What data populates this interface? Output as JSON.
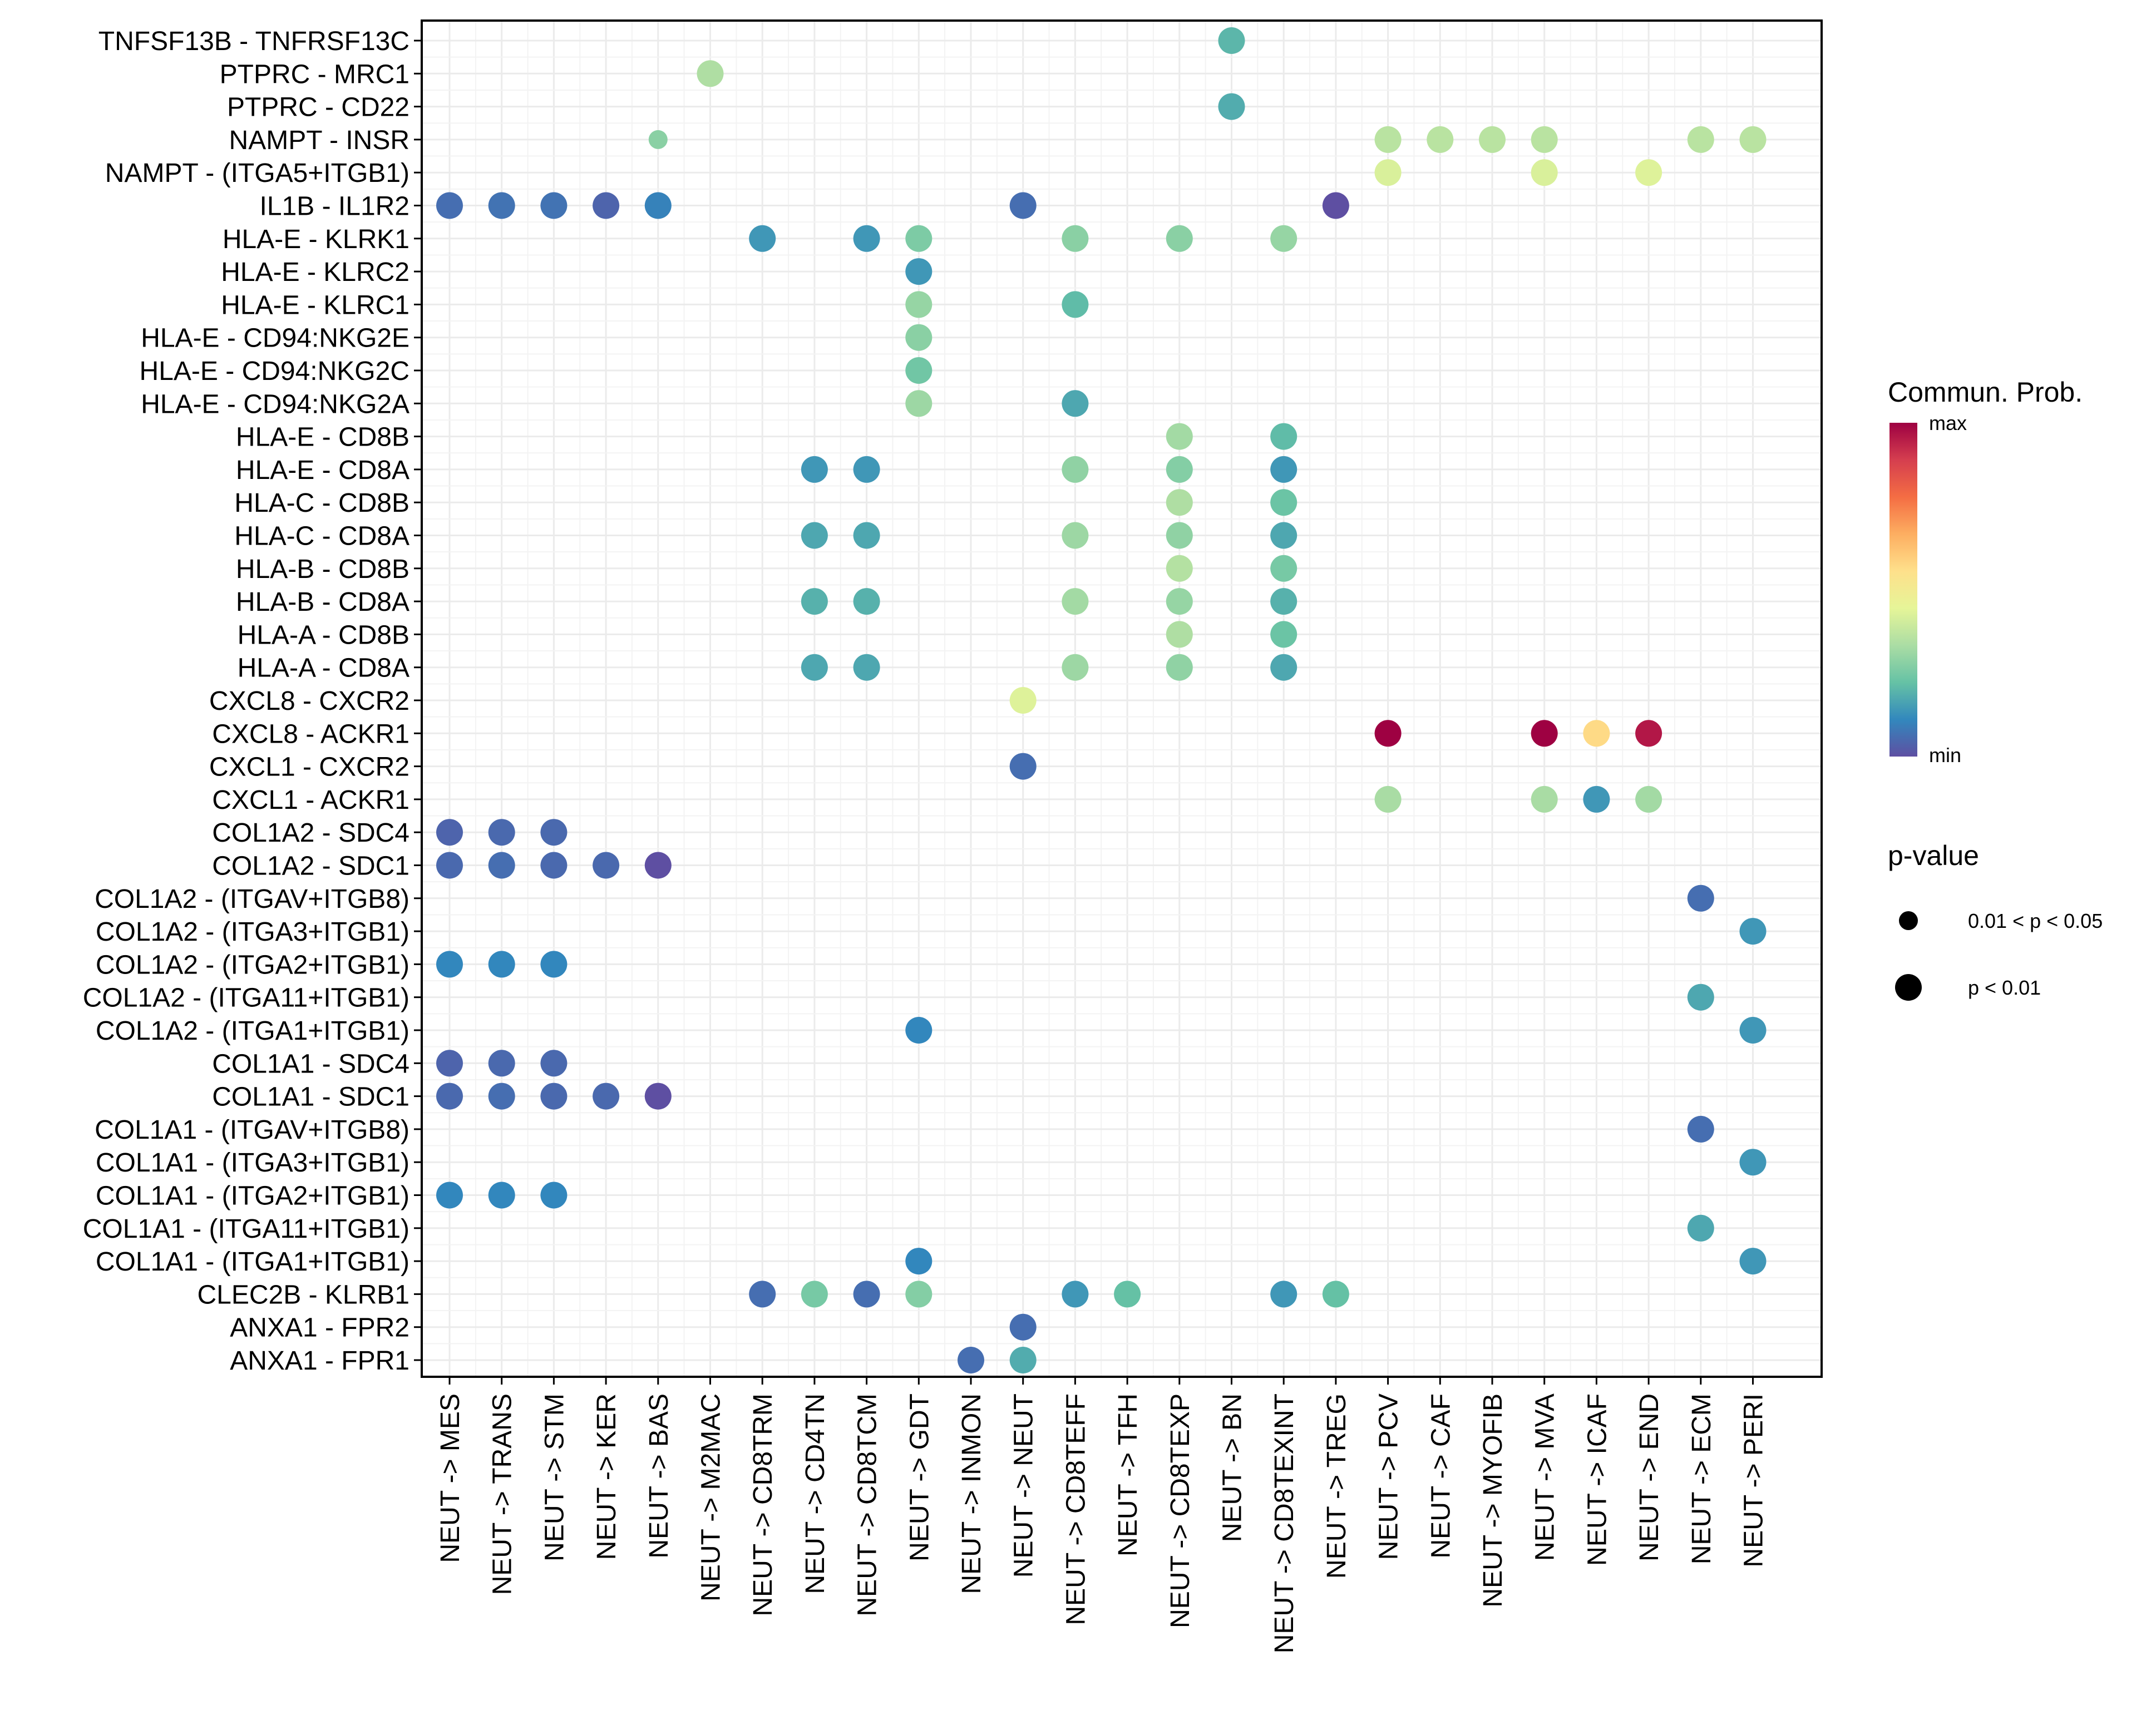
{
  "chart_data": {
    "type": "scatter",
    "subtype": "dot-plot",
    "title": "",
    "xlabel": "",
    "ylabel": "",
    "grid": true,
    "legend_position": "right",
    "x_categories": [
      "NEUT -> MES",
      "NEUT -> TRANS",
      "NEUT -> STM",
      "NEUT -> KER",
      "NEUT -> BAS",
      "NEUT -> M2MAC",
      "NEUT -> CD8TRM",
      "NEUT -> CD4TN",
      "NEUT -> CD8TCM",
      "NEUT -> GDT",
      "NEUT -> INMON",
      "NEUT -> NEUT",
      "NEUT -> CD8TEFF",
      "NEUT -> TFH",
      "NEUT -> CD8TEXP",
      "NEUT -> BN",
      "NEUT -> CD8TEXINT",
      "NEUT -> TREG",
      "NEUT -> PCV",
      "NEUT -> CAF",
      "NEUT -> MYOFIB",
      "NEUT -> MVA",
      "NEUT -> ICAF",
      "NEUT -> END",
      "NEUT -> ECM",
      "NEUT -> PERI"
    ],
    "y_categories": [
      "TNFSF13B - TNFRSF13C",
      "PTPRC - MRC1",
      "PTPRC - CD22",
      "NAMPT - INSR",
      "NAMPT - (ITGA5+ITGB1)",
      "IL1B - IL1R2",
      "HLA-E - KLRK1",
      "HLA-E - KLRC2",
      "HLA-E - KLRC1",
      "HLA-E - CD94:NKG2E",
      "HLA-E - CD94:NKG2C",
      "HLA-E - CD94:NKG2A",
      "HLA-E - CD8B",
      "HLA-E - CD8A",
      "HLA-C - CD8B",
      "HLA-C - CD8A",
      "HLA-B - CD8B",
      "HLA-B - CD8A",
      "HLA-A - CD8B",
      "HLA-A - CD8A",
      "CXCL8 - CXCR2",
      "CXCL8 - ACKR1",
      "CXCL1 - CXCR2",
      "CXCL1 - ACKR1",
      "COL1A2 - SDC4",
      "COL1A2 - SDC1",
      "COL1A2 - (ITGAV+ITGB8)",
      "COL1A2 - (ITGA3+ITGB1)",
      "COL1A2 - (ITGA2+ITGB1)",
      "COL1A2 - (ITGA11+ITGB1)",
      "COL1A2 - (ITGA1+ITGB1)",
      "COL1A1 - SDC4",
      "COL1A1 - SDC1",
      "COL1A1 - (ITGAV+ITGB8)",
      "COL1A1 - (ITGA3+ITGB1)",
      "COL1A1 - (ITGA2+ITGB1)",
      "COL1A1 - (ITGA11+ITGB1)",
      "COL1A1 - (ITGA1+ITGB1)",
      "CLEC2B - KLRB1",
      "ANXA1 - FPR2",
      "ANXA1 - FPR1"
    ],
    "color_scale": {
      "title": "Commun. Prob.",
      "min_label": "min",
      "max_label": "max",
      "palette": [
        "#5E4FA2",
        "#3288BD",
        "#66C2A5",
        "#ABDDA4",
        "#E6F598",
        "#FEE08B",
        "#FDAE61",
        "#F46D43",
        "#D53E4F",
        "#9E0142"
      ]
    },
    "size_legend": {
      "title": "p-value",
      "entries": [
        {
          "label": "0.01 < p < 0.05",
          "pclass": "mid"
        },
        {
          "label": "p < 0.01",
          "pclass": "low"
        }
      ]
    },
    "points": [
      {
        "x": "NEUT -> BN",
        "y": "TNFSF13B - TNFRSF13C",
        "prob": 0.2,
        "pclass": "low"
      },
      {
        "x": "NEUT -> M2MAC",
        "y": "PTPRC - MRC1",
        "prob": 0.34,
        "pclass": "low"
      },
      {
        "x": "NEUT -> BN",
        "y": "PTPRC - CD22",
        "prob": 0.18,
        "pclass": "low"
      },
      {
        "x": "NEUT -> BAS",
        "y": "NAMPT - INSR",
        "prob": 0.28,
        "pclass": "mid"
      },
      {
        "x": "NEUT -> PCV",
        "y": "NAMPT - INSR",
        "prob": 0.36,
        "pclass": "low"
      },
      {
        "x": "NEUT -> CAF",
        "y": "NAMPT - INSR",
        "prob": 0.36,
        "pclass": "low"
      },
      {
        "x": "NEUT -> MYOFIB",
        "y": "NAMPT - INSR",
        "prob": 0.36,
        "pclass": "low"
      },
      {
        "x": "NEUT -> MVA",
        "y": "NAMPT - INSR",
        "prob": 0.36,
        "pclass": "low"
      },
      {
        "x": "NEUT -> ECM",
        "y": "NAMPT - INSR",
        "prob": 0.36,
        "pclass": "low"
      },
      {
        "x": "NEUT -> PERI",
        "y": "NAMPT - INSR",
        "prob": 0.36,
        "pclass": "low"
      },
      {
        "x": "NEUT -> PCV",
        "y": "NAMPT - (ITGA5+ITGB1)",
        "prob": 0.42,
        "pclass": "low"
      },
      {
        "x": "NEUT -> MVA",
        "y": "NAMPT - (ITGA5+ITGB1)",
        "prob": 0.42,
        "pclass": "low"
      },
      {
        "x": "NEUT -> END",
        "y": "NAMPT - (ITGA5+ITGB1)",
        "prob": 0.43,
        "pclass": "low"
      },
      {
        "x": "NEUT -> MES",
        "y": "IL1B - IL1R2",
        "prob": 0.06,
        "pclass": "low"
      },
      {
        "x": "NEUT -> TRANS",
        "y": "IL1B - IL1R2",
        "prob": 0.07,
        "pclass": "low"
      },
      {
        "x": "NEUT -> STM",
        "y": "IL1B - IL1R2",
        "prob": 0.07,
        "pclass": "low"
      },
      {
        "x": "NEUT -> KER",
        "y": "IL1B - IL1R2",
        "prob": 0.04,
        "pclass": "low"
      },
      {
        "x": "NEUT -> BAS",
        "y": "IL1B - IL1R2",
        "prob": 0.1,
        "pclass": "low"
      },
      {
        "x": "NEUT -> NEUT",
        "y": "IL1B - IL1R2",
        "prob": 0.06,
        "pclass": "low"
      },
      {
        "x": "NEUT -> TREG",
        "y": "IL1B - IL1R2",
        "prob": 0.0,
        "pclass": "low"
      },
      {
        "x": "NEUT -> CD8TRM",
        "y": "HLA-E - KLRK1",
        "prob": 0.14,
        "pclass": "low"
      },
      {
        "x": "NEUT -> CD8TCM",
        "y": "HLA-E - KLRK1",
        "prob": 0.14,
        "pclass": "low"
      },
      {
        "x": "NEUT -> GDT",
        "y": "HLA-E - KLRK1",
        "prob": 0.26,
        "pclass": "low"
      },
      {
        "x": "NEUT -> CD8TEFF",
        "y": "HLA-E - KLRK1",
        "prob": 0.28,
        "pclass": "low"
      },
      {
        "x": "NEUT -> CD8TEXP",
        "y": "HLA-E - KLRK1",
        "prob": 0.28,
        "pclass": "low"
      },
      {
        "x": "NEUT -> CD8TEXINT",
        "y": "HLA-E - KLRK1",
        "prob": 0.3,
        "pclass": "low"
      },
      {
        "x": "NEUT -> GDT",
        "y": "HLA-E - KLRC2",
        "prob": 0.14,
        "pclass": "low"
      },
      {
        "x": "NEUT -> GDT",
        "y": "HLA-E - KLRC1",
        "prob": 0.3,
        "pclass": "low"
      },
      {
        "x": "NEUT -> CD8TEFF",
        "y": "HLA-E - KLRC1",
        "prob": 0.21,
        "pclass": "low"
      },
      {
        "x": "NEUT -> GDT",
        "y": "HLA-E - CD94:NKG2E",
        "prob": 0.28,
        "pclass": "low"
      },
      {
        "x": "NEUT -> GDT",
        "y": "HLA-E - CD94:NKG2C",
        "prob": 0.24,
        "pclass": "low"
      },
      {
        "x": "NEUT -> GDT",
        "y": "HLA-E - CD94:NKG2A",
        "prob": 0.31,
        "pclass": "low"
      },
      {
        "x": "NEUT -> CD8TEFF",
        "y": "HLA-E - CD94:NKG2A",
        "prob": 0.17,
        "pclass": "low"
      },
      {
        "x": "NEUT -> CD8TEXP",
        "y": "HLA-E - CD8B",
        "prob": 0.32,
        "pclass": "low"
      },
      {
        "x": "NEUT -> CD8TEXINT",
        "y": "HLA-E - CD8B",
        "prob": 0.21,
        "pclass": "low"
      },
      {
        "x": "NEUT -> CD4TN",
        "y": "HLA-E - CD8A",
        "prob": 0.14,
        "pclass": "low"
      },
      {
        "x": "NEUT -> CD8TCM",
        "y": "HLA-E - CD8A",
        "prob": 0.14,
        "pclass": "low"
      },
      {
        "x": "NEUT -> CD8TEFF",
        "y": "HLA-E - CD8A",
        "prob": 0.29,
        "pclass": "low"
      },
      {
        "x": "NEUT -> CD8TEXP",
        "y": "HLA-E - CD8A",
        "prob": 0.27,
        "pclass": "low"
      },
      {
        "x": "NEUT -> CD8TEXINT",
        "y": "HLA-E - CD8A",
        "prob": 0.14,
        "pclass": "low"
      },
      {
        "x": "NEUT -> CD8TEXP",
        "y": "HLA-C - CD8B",
        "prob": 0.34,
        "pclass": "low"
      },
      {
        "x": "NEUT -> CD8TEXINT",
        "y": "HLA-C - CD8B",
        "prob": 0.23,
        "pclass": "low"
      },
      {
        "x": "NEUT -> CD4TN",
        "y": "HLA-C - CD8A",
        "prob": 0.17,
        "pclass": "low"
      },
      {
        "x": "NEUT -> CD8TCM",
        "y": "HLA-C - CD8A",
        "prob": 0.17,
        "pclass": "low"
      },
      {
        "x": "NEUT -> CD8TEFF",
        "y": "HLA-C - CD8A",
        "prob": 0.31,
        "pclass": "low"
      },
      {
        "x": "NEUT -> CD8TEXP",
        "y": "HLA-C - CD8A",
        "prob": 0.29,
        "pclass": "low"
      },
      {
        "x": "NEUT -> CD8TEXINT",
        "y": "HLA-C - CD8A",
        "prob": 0.17,
        "pclass": "low"
      },
      {
        "x": "NEUT -> CD8TEXP",
        "y": "HLA-B - CD8B",
        "prob": 0.35,
        "pclass": "low"
      },
      {
        "x": "NEUT -> CD8TEXINT",
        "y": "HLA-B - CD8B",
        "prob": 0.25,
        "pclass": "low"
      },
      {
        "x": "NEUT -> CD4TN",
        "y": "HLA-B - CD8A",
        "prob": 0.19,
        "pclass": "low"
      },
      {
        "x": "NEUT -> CD8TCM",
        "y": "HLA-B - CD8A",
        "prob": 0.19,
        "pclass": "low"
      },
      {
        "x": "NEUT -> CD8TEFF",
        "y": "HLA-B - CD8A",
        "prob": 0.32,
        "pclass": "low"
      },
      {
        "x": "NEUT -> CD8TEXP",
        "y": "HLA-B - CD8A",
        "prob": 0.3,
        "pclass": "low"
      },
      {
        "x": "NEUT -> CD8TEXINT",
        "y": "HLA-B - CD8A",
        "prob": 0.19,
        "pclass": "low"
      },
      {
        "x": "NEUT -> CD8TEXP",
        "y": "HLA-A - CD8B",
        "prob": 0.34,
        "pclass": "low"
      },
      {
        "x": "NEUT -> CD8TEXINT",
        "y": "HLA-A - CD8B",
        "prob": 0.23,
        "pclass": "low"
      },
      {
        "x": "NEUT -> CD4TN",
        "y": "HLA-A - CD8A",
        "prob": 0.17,
        "pclass": "low"
      },
      {
        "x": "NEUT -> CD8TCM",
        "y": "HLA-A - CD8A",
        "prob": 0.17,
        "pclass": "low"
      },
      {
        "x": "NEUT -> CD8TEFF",
        "y": "HLA-A - CD8A",
        "prob": 0.31,
        "pclass": "low"
      },
      {
        "x": "NEUT -> CD8TEXP",
        "y": "HLA-A - CD8A",
        "prob": 0.29,
        "pclass": "low"
      },
      {
        "x": "NEUT -> CD8TEXINT",
        "y": "HLA-A - CD8A",
        "prob": 0.17,
        "pclass": "low"
      },
      {
        "x": "NEUT -> NEUT",
        "y": "CXCL8 - CXCR2",
        "prob": 0.43,
        "pclass": "low"
      },
      {
        "x": "NEUT -> PCV",
        "y": "CXCL8 - ACKR1",
        "prob": 1.0,
        "pclass": "low"
      },
      {
        "x": "NEUT -> MVA",
        "y": "CXCL8 - ACKR1",
        "prob": 1.0,
        "pclass": "low"
      },
      {
        "x": "NEUT -> ICAF",
        "y": "CXCL8 - ACKR1",
        "prob": 0.57,
        "pclass": "low"
      },
      {
        "x": "NEUT -> END",
        "y": "CXCL8 - ACKR1",
        "prob": 0.96,
        "pclass": "low"
      },
      {
        "x": "NEUT -> NEUT",
        "y": "CXCL1 - CXCR2",
        "prob": 0.06,
        "pclass": "low"
      },
      {
        "x": "NEUT -> PCV",
        "y": "CXCL1 - ACKR1",
        "prob": 0.33,
        "pclass": "low"
      },
      {
        "x": "NEUT -> MVA",
        "y": "CXCL1 - ACKR1",
        "prob": 0.33,
        "pclass": "low"
      },
      {
        "x": "NEUT -> ICAF",
        "y": "CXCL1 - ACKR1",
        "prob": 0.14,
        "pclass": "low"
      },
      {
        "x": "NEUT -> END",
        "y": "CXCL1 - ACKR1",
        "prob": 0.32,
        "pclass": "low"
      },
      {
        "x": "NEUT -> MES",
        "y": "COL1A2 - SDC4",
        "prob": 0.04,
        "pclass": "low"
      },
      {
        "x": "NEUT -> TRANS",
        "y": "COL1A2 - SDC4",
        "prob": 0.05,
        "pclass": "low"
      },
      {
        "x": "NEUT -> STM",
        "y": "COL1A2 - SDC4",
        "prob": 0.05,
        "pclass": "low"
      },
      {
        "x": "NEUT -> MES",
        "y": "COL1A2 - SDC1",
        "prob": 0.05,
        "pclass": "low"
      },
      {
        "x": "NEUT -> TRANS",
        "y": "COL1A2 - SDC1",
        "prob": 0.06,
        "pclass": "low"
      },
      {
        "x": "NEUT -> STM",
        "y": "COL1A2 - SDC1",
        "prob": 0.05,
        "pclass": "low"
      },
      {
        "x": "NEUT -> KER",
        "y": "COL1A2 - SDC1",
        "prob": 0.05,
        "pclass": "low"
      },
      {
        "x": "NEUT -> BAS",
        "y": "COL1A2 - SDC1",
        "prob": 0.0,
        "pclass": "low"
      },
      {
        "x": "NEUT -> ECM",
        "y": "COL1A2 - (ITGAV+ITGB8)",
        "prob": 0.06,
        "pclass": "low"
      },
      {
        "x": "NEUT -> PERI",
        "y": "COL1A2 - (ITGA3+ITGB1)",
        "prob": 0.14,
        "pclass": "low"
      },
      {
        "x": "NEUT -> MES",
        "y": "COL1A2 - (ITGA2+ITGB1)",
        "prob": 0.11,
        "pclass": "low"
      },
      {
        "x": "NEUT -> TRANS",
        "y": "COL1A2 - (ITGA2+ITGB1)",
        "prob": 0.11,
        "pclass": "low"
      },
      {
        "x": "NEUT -> STM",
        "y": "COL1A2 - (ITGA2+ITGB1)",
        "prob": 0.11,
        "pclass": "low"
      },
      {
        "x": "NEUT -> ECM",
        "y": "COL1A2 - (ITGA11+ITGB1)",
        "prob": 0.17,
        "pclass": "low"
      },
      {
        "x": "NEUT -> GDT",
        "y": "COL1A2 - (ITGA1+ITGB1)",
        "prob": 0.11,
        "pclass": "low"
      },
      {
        "x": "NEUT -> PERI",
        "y": "COL1A2 - (ITGA1+ITGB1)",
        "prob": 0.14,
        "pclass": "low"
      },
      {
        "x": "NEUT -> MES",
        "y": "COL1A1 - SDC4",
        "prob": 0.04,
        "pclass": "low"
      },
      {
        "x": "NEUT -> TRANS",
        "y": "COL1A1 - SDC4",
        "prob": 0.05,
        "pclass": "low"
      },
      {
        "x": "NEUT -> STM",
        "y": "COL1A1 - SDC4",
        "prob": 0.05,
        "pclass": "low"
      },
      {
        "x": "NEUT -> MES",
        "y": "COL1A1 - SDC1",
        "prob": 0.05,
        "pclass": "low"
      },
      {
        "x": "NEUT -> TRANS",
        "y": "COL1A1 - SDC1",
        "prob": 0.06,
        "pclass": "low"
      },
      {
        "x": "NEUT -> STM",
        "y": "COL1A1 - SDC1",
        "prob": 0.05,
        "pclass": "low"
      },
      {
        "x": "NEUT -> KER",
        "y": "COL1A1 - SDC1",
        "prob": 0.05,
        "pclass": "low"
      },
      {
        "x": "NEUT -> BAS",
        "y": "COL1A1 - SDC1",
        "prob": 0.0,
        "pclass": "low"
      },
      {
        "x": "NEUT -> ECM",
        "y": "COL1A1 - (ITGAV+ITGB8)",
        "prob": 0.06,
        "pclass": "low"
      },
      {
        "x": "NEUT -> PERI",
        "y": "COL1A1 - (ITGA3+ITGB1)",
        "prob": 0.14,
        "pclass": "low"
      },
      {
        "x": "NEUT -> MES",
        "y": "COL1A1 - (ITGA2+ITGB1)",
        "prob": 0.11,
        "pclass": "low"
      },
      {
        "x": "NEUT -> TRANS",
        "y": "COL1A1 - (ITGA2+ITGB1)",
        "prob": 0.11,
        "pclass": "low"
      },
      {
        "x": "NEUT -> STM",
        "y": "COL1A1 - (ITGA2+ITGB1)",
        "prob": 0.11,
        "pclass": "low"
      },
      {
        "x": "NEUT -> ECM",
        "y": "COL1A1 - (ITGA11+ITGB1)",
        "prob": 0.17,
        "pclass": "low"
      },
      {
        "x": "NEUT -> GDT",
        "y": "COL1A1 - (ITGA1+ITGB1)",
        "prob": 0.11,
        "pclass": "low"
      },
      {
        "x": "NEUT -> PERI",
        "y": "COL1A1 - (ITGA1+ITGB1)",
        "prob": 0.14,
        "pclass": "low"
      },
      {
        "x": "NEUT -> CD8TRM",
        "y": "CLEC2B - KLRB1",
        "prob": 0.06,
        "pclass": "low"
      },
      {
        "x": "NEUT -> CD4TN",
        "y": "CLEC2B - KLRB1",
        "prob": 0.25,
        "pclass": "low"
      },
      {
        "x": "NEUT -> CD8TCM",
        "y": "CLEC2B - KLRB1",
        "prob": 0.06,
        "pclass": "low"
      },
      {
        "x": "NEUT -> GDT",
        "y": "CLEC2B - KLRB1",
        "prob": 0.27,
        "pclass": "low"
      },
      {
        "x": "NEUT -> CD8TEFF",
        "y": "CLEC2B - KLRB1",
        "prob": 0.14,
        "pclass": "low"
      },
      {
        "x": "NEUT -> TFH",
        "y": "CLEC2B - KLRB1",
        "prob": 0.22,
        "pclass": "low"
      },
      {
        "x": "NEUT -> CD8TEXINT",
        "y": "CLEC2B - KLRB1",
        "prob": 0.14,
        "pclass": "low"
      },
      {
        "x": "NEUT -> TREG",
        "y": "CLEC2B - KLRB1",
        "prob": 0.22,
        "pclass": "low"
      },
      {
        "x": "NEUT -> NEUT",
        "y": "ANXA1 - FPR2",
        "prob": 0.06,
        "pclass": "low"
      },
      {
        "x": "NEUT -> INMON",
        "y": "ANXA1 - FPR1",
        "prob": 0.06,
        "pclass": "low"
      },
      {
        "x": "NEUT -> NEUT",
        "y": "ANXA1 - FPR1",
        "prob": 0.18,
        "pclass": "low"
      }
    ]
  }
}
